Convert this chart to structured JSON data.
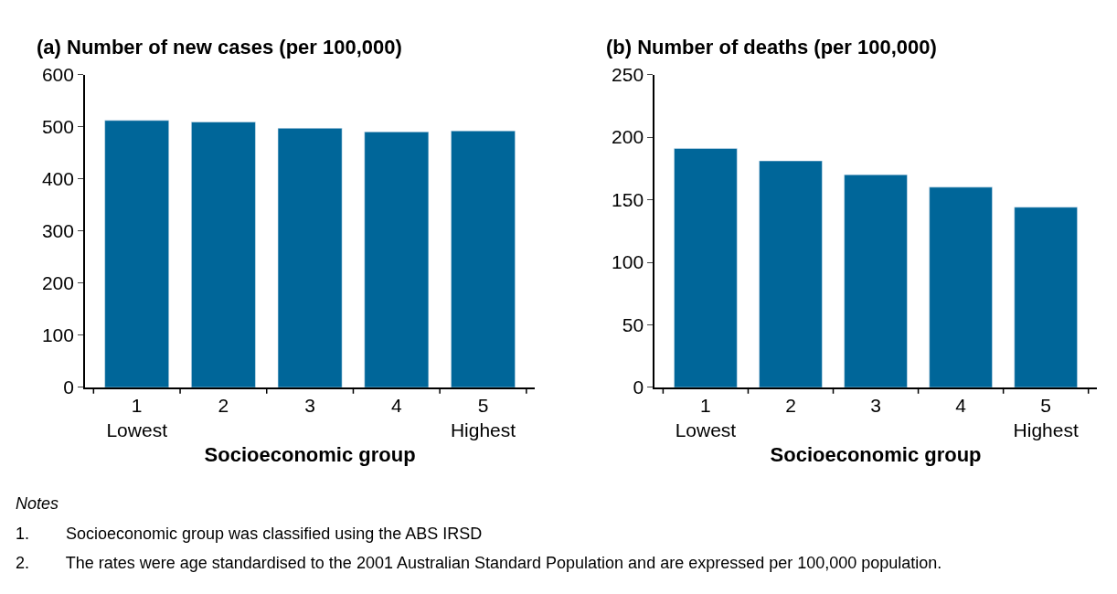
{
  "chart_data": [
    {
      "type": "bar",
      "title": "(a) Number of new cases (per 100,000)",
      "xlabel": "Socioeconomic group",
      "categories": [
        "1\nLowest",
        "2",
        "3",
        "4",
        "5\nHighest"
      ],
      "values": [
        512,
        509,
        497,
        490,
        492
      ],
      "color": "#006699",
      "ylim": [
        0,
        600
      ],
      "yticks": [
        0,
        100,
        200,
        300,
        400,
        500,
        600
      ],
      "annotations": [
        "Notes",
        "1.        Socioeconomic group was classified using the ABS IRSD",
        "2.        The rates were age standardised to the 2001 Australian Standard Population and are expressed per 100,000 population."
      ]
    },
    {
      "type": "bar",
      "title": "(b) Number of deaths (per 100,000)",
      "xlabel": "Socioeconomic group",
      "categories": [
        "1\nLowest",
        "2",
        "3",
        "4",
        "5\nHighest"
      ],
      "values": [
        191,
        181,
        170,
        160,
        144
      ],
      "color": "#006699",
      "ylim": [
        0,
        250
      ],
      "yticks": [
        0,
        50,
        100,
        150,
        200,
        250
      ]
    }
  ]
}
